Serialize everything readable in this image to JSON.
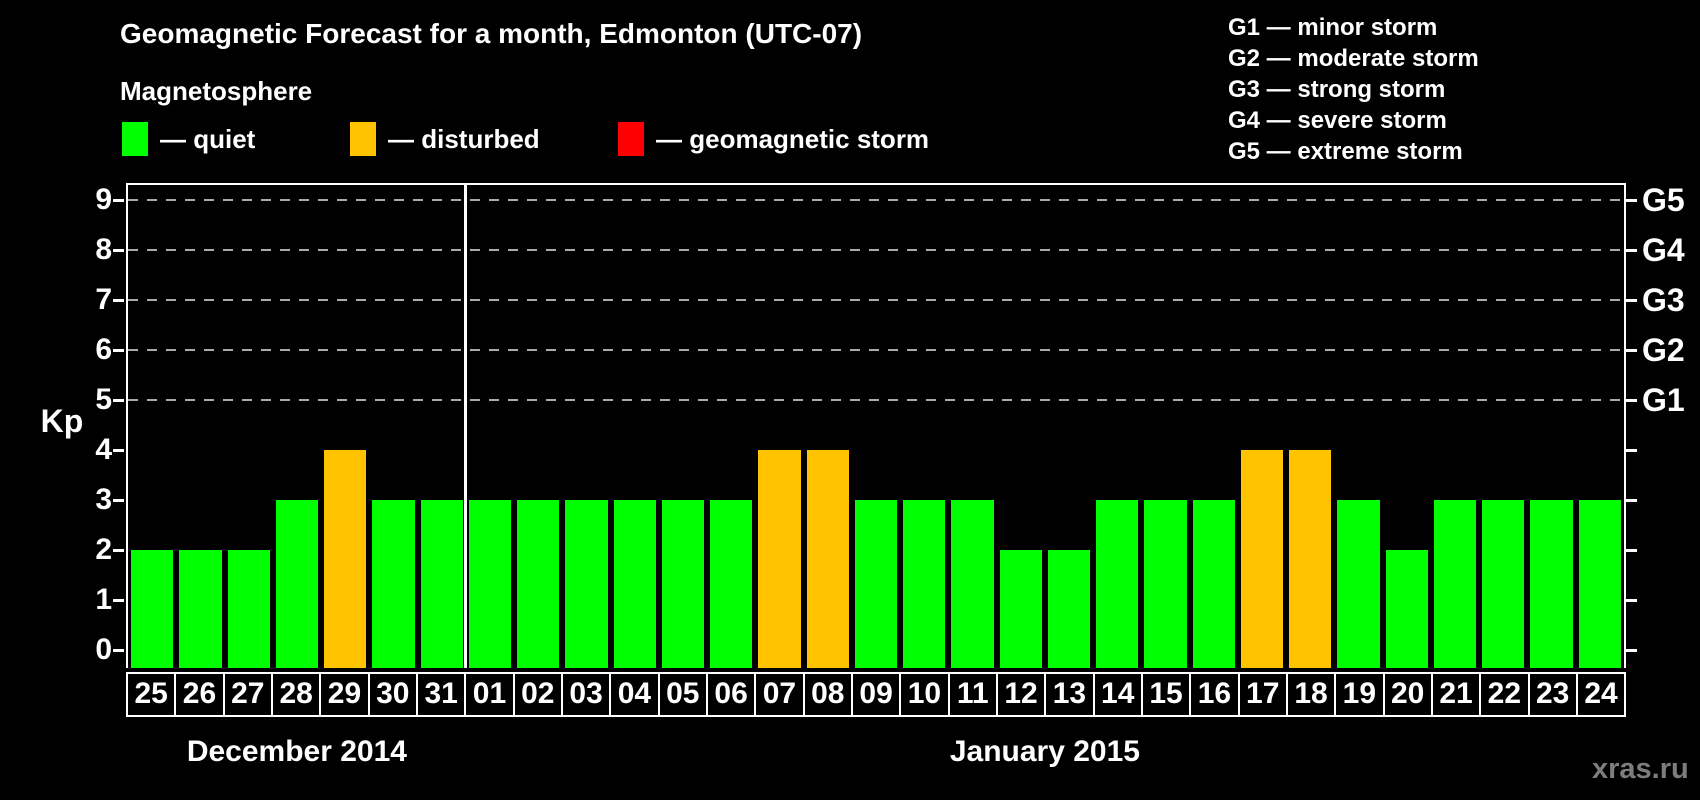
{
  "title": "Geomagnetic Forecast for a month, Edmonton (UTC-07)",
  "subtitle": "Magnetosphere",
  "legend": {
    "quiet": "— quiet",
    "disturbed": "— disturbed",
    "storm": "— geomagnetic storm"
  },
  "g_scale_legend": [
    "G1 — minor storm",
    "G2 — moderate storm",
    "G3 — strong storm",
    "G4 — severe storm",
    "G5 — extreme storm"
  ],
  "colors": {
    "quiet": "#00ff00",
    "disturbed": "#ffc300",
    "storm": "#ff0000",
    "grid": "#aaaaaa",
    "axis": "#ffffff",
    "watermark": "#7d7d7d"
  },
  "y_axis": {
    "label": "Kp",
    "ticks": [
      0,
      1,
      2,
      3,
      4,
      5,
      6,
      7,
      8,
      9
    ]
  },
  "right_axis": [
    {
      "label": "G1",
      "kp": 5
    },
    {
      "label": "G2",
      "kp": 6
    },
    {
      "label": "G3",
      "kp": 7
    },
    {
      "label": "G4",
      "kp": 8
    },
    {
      "label": "G5",
      "kp": 9
    }
  ],
  "watermark": "xras.ru",
  "chart_data": {
    "type": "bar",
    "title": "Geomagnetic Forecast for a month, Edmonton (UTC-07)",
    "ylabel": "Kp",
    "ylim": [
      0,
      9.4
    ],
    "legend_position": "top-left",
    "grid": "horizontal dashed lines at Kp 5-9 (G1-G5 levels)",
    "gridlines_at": [
      5,
      6,
      7,
      8,
      9
    ],
    "months": [
      {
        "label": "December 2014",
        "days": 7
      },
      {
        "label": "January 2015",
        "days": 24
      }
    ],
    "categories": [
      "25",
      "26",
      "27",
      "28",
      "29",
      "30",
      "31",
      "01",
      "02",
      "03",
      "04",
      "05",
      "06",
      "07",
      "08",
      "09",
      "10",
      "11",
      "12",
      "13",
      "14",
      "15",
      "16",
      "17",
      "18",
      "19",
      "20",
      "21",
      "22",
      "23",
      "24"
    ],
    "values": [
      2,
      2,
      2,
      3,
      4,
      3,
      3,
      3,
      3,
      3,
      3,
      3,
      3,
      4,
      4,
      3,
      3,
      3,
      2,
      2,
      3,
      3,
      3,
      4,
      4,
      3,
      2,
      3,
      3,
      3,
      3
    ],
    "statuses": [
      "quiet",
      "quiet",
      "quiet",
      "quiet",
      "disturbed",
      "quiet",
      "quiet",
      "quiet",
      "quiet",
      "quiet",
      "quiet",
      "quiet",
      "quiet",
      "disturbed",
      "disturbed",
      "quiet",
      "quiet",
      "quiet",
      "quiet",
      "quiet",
      "quiet",
      "quiet",
      "quiet",
      "disturbed",
      "disturbed",
      "quiet",
      "quiet",
      "quiet",
      "quiet",
      "quiet",
      "quiet"
    ]
  }
}
